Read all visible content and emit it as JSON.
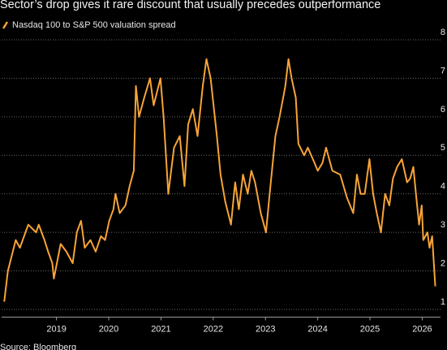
{
  "chart_data": {
    "type": "line",
    "title": "Sector’s drop gives it rare discount that usually precedes outperformance",
    "source": "Source: Bloomberg",
    "xlim": [
      2017.95,
      2026.35
    ],
    "xticks": [
      2019,
      2020,
      2021,
      2022,
      2023,
      2024,
      2025,
      2026
    ],
    "ylim": [
      0.8,
      8.2
    ],
    "yticks": [
      1,
      2,
      3,
      4,
      5,
      6,
      7,
      8
    ],
    "grid": true,
    "series": [
      {
        "name": "Nasdaq 100 to S&P 500 valuation spread",
        "color": "#f7a437",
        "x": [
          2018.0,
          2018.07,
          2018.22,
          2018.3,
          2018.46,
          2018.61,
          2018.66,
          2018.77,
          2018.84,
          2018.92,
          2018.95,
          2019.08,
          2019.19,
          2019.31,
          2019.39,
          2019.47,
          2019.54,
          2019.65,
          2019.75,
          2019.85,
          2019.93,
          2020.01,
          2020.09,
          2020.13,
          2020.21,
          2020.32,
          2020.4,
          2020.48,
          2020.52,
          2020.58,
          2020.68,
          2020.79,
          2020.86,
          2020.99,
          2021.05,
          2021.14,
          2021.25,
          2021.36,
          2021.45,
          2021.52,
          2021.61,
          2021.7,
          2021.8,
          2021.87,
          2021.95,
          2022.03,
          2022.07,
          2022.14,
          2022.23,
          2022.34,
          2022.42,
          2022.49,
          2022.57,
          2022.66,
          2022.73,
          2022.8,
          2022.91,
          2023.01,
          2023.08,
          2023.19,
          2023.27,
          2023.38,
          2023.44,
          2023.5,
          2023.58,
          2023.63,
          2023.74,
          2023.81,
          2023.94,
          2024.0,
          2024.09,
          2024.16,
          2024.28,
          2024.43,
          2024.56,
          2024.68,
          2024.75,
          2024.82,
          2024.9,
          2024.99,
          2025.06,
          2025.13,
          2025.21,
          2025.29,
          2025.37,
          2025.44,
          2025.52,
          2025.61,
          2025.71,
          2025.77,
          2025.83,
          2025.88,
          2025.94,
          2025.99,
          2026.02,
          2026.1,
          2026.14,
          2026.19,
          2026.25
        ],
        "values": [
          1.2,
          2.0,
          2.8,
          2.6,
          3.2,
          3.0,
          3.2,
          2.8,
          2.5,
          2.2,
          1.8,
          2.7,
          2.5,
          2.2,
          3.0,
          3.3,
          2.6,
          2.8,
          2.5,
          2.9,
          2.8,
          3.3,
          3.6,
          4.0,
          3.5,
          3.7,
          4.2,
          4.6,
          6.8,
          6.0,
          6.5,
          7.0,
          6.3,
          7.0,
          6.0,
          4.0,
          5.2,
          5.5,
          4.2,
          5.8,
          6.2,
          5.5,
          6.8,
          7.5,
          7.0,
          6.0,
          5.5,
          4.5,
          3.8,
          3.2,
          4.3,
          3.6,
          4.5,
          4.0,
          4.6,
          4.3,
          3.5,
          3.0,
          4.0,
          5.5,
          6.0,
          6.8,
          7.5,
          7.0,
          6.5,
          5.3,
          5.0,
          5.2,
          4.8,
          4.6,
          4.8,
          5.2,
          4.6,
          4.5,
          3.9,
          3.5,
          4.5,
          4.0,
          4.0,
          4.9,
          4.0,
          3.5,
          3.0,
          4.0,
          3.7,
          4.4,
          4.7,
          4.9,
          4.3,
          4.4,
          4.7,
          4.0,
          3.2,
          3.7,
          2.8,
          3.0,
          2.6,
          2.9,
          1.6
        ]
      }
    ]
  }
}
